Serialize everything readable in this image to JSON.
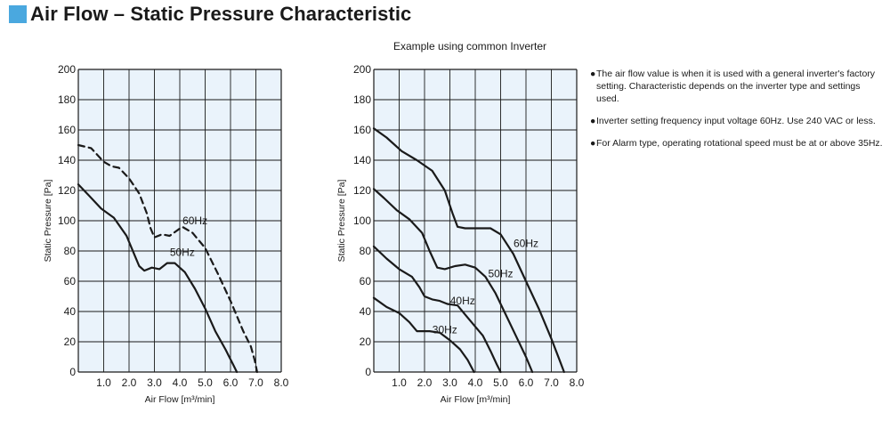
{
  "title": "Air Flow – Static Pressure Characteristic",
  "colors": {
    "accent": "#4aa8df",
    "plot_background": "#eaf3fb",
    "grid": "#1a1a1a",
    "curve": "#1a1a1a"
  },
  "notes": [
    "The air flow value is when it is used with a general inverter's factory setting.  Characteristic depends on the inverter type and settings used.",
    "Inverter setting frequency input voltage 60Hz. Use 240 VAC or less.",
    "For Alarm type, operating rotational speed must be at or above 35Hz."
  ],
  "chart_data": [
    {
      "type": "line",
      "subtitle": "",
      "xlabel": "Air Flow [m³/min]",
      "ylabel": "Static Pressure [Pa]",
      "xlim": [
        0,
        8.0
      ],
      "ylim": [
        0,
        200
      ],
      "x_ticks": [
        "1.0",
        "2.0",
        "3.0",
        "4.0",
        "5.0",
        "6.0",
        "7.0",
        "8.0"
      ],
      "y_ticks": [
        "0",
        "20",
        "40",
        "60",
        "80",
        "100",
        "120",
        "140",
        "160",
        "180",
        "200"
      ],
      "grid": true,
      "series": [
        {
          "name": "60Hz",
          "dashed": true,
          "points": [
            [
              0,
              150
            ],
            [
              0.5,
              148
            ],
            [
              1.0,
              139
            ],
            [
              1.3,
              136
            ],
            [
              1.6,
              135
            ],
            [
              2.0,
              128
            ],
            [
              2.4,
              118
            ],
            [
              2.7,
              105
            ],
            [
              2.85,
              95
            ],
            [
              3.0,
              89
            ],
            [
              3.3,
              91
            ],
            [
              3.6,
              90
            ],
            [
              3.85,
              93
            ],
            [
              4.1,
              96
            ],
            [
              4.5,
              92
            ],
            [
              5.0,
              82
            ],
            [
              5.5,
              65
            ],
            [
              6.0,
              47
            ],
            [
              6.5,
              27
            ],
            [
              6.8,
              17
            ],
            [
              6.95,
              8
            ],
            [
              7.05,
              0
            ]
          ],
          "label_at": [
            4.6,
            100
          ]
        },
        {
          "name": "50Hz",
          "dashed": false,
          "points": [
            [
              0,
              124
            ],
            [
              0.4,
              117
            ],
            [
              0.9,
              108
            ],
            [
              1.4,
              102
            ],
            [
              1.9,
              90
            ],
            [
              2.2,
              78
            ],
            [
              2.4,
              70
            ],
            [
              2.6,
              67
            ],
            [
              2.9,
              69
            ],
            [
              3.2,
              68
            ],
            [
              3.5,
              72
            ],
            [
              3.8,
              72
            ],
            [
              4.2,
              66
            ],
            [
              4.6,
              55
            ],
            [
              5.0,
              42
            ],
            [
              5.4,
              27
            ],
            [
              5.8,
              15
            ],
            [
              6.1,
              5
            ],
            [
              6.25,
              0
            ]
          ],
          "label_at": [
            4.1,
            79
          ]
        }
      ]
    },
    {
      "type": "line",
      "subtitle": "Example using common Inverter",
      "xlabel": "Air Flow [m³/min]",
      "ylabel": "Static Pressure [Pa]",
      "xlim": [
        0,
        8.0
      ],
      "ylim": [
        0,
        200
      ],
      "x_ticks": [
        "1.0",
        "2.0",
        "3.0",
        "4.0",
        "5.0",
        "6.0",
        "7.0",
        "8.0"
      ],
      "y_ticks": [
        "0",
        "20",
        "40",
        "60",
        "80",
        "100",
        "120",
        "140",
        "160",
        "180",
        "200"
      ],
      "grid": true,
      "series": [
        {
          "name": "60Hz",
          "dashed": false,
          "points": [
            [
              0,
              161
            ],
            [
              0.5,
              155
            ],
            [
              1.1,
              146
            ],
            [
              1.7,
              140
            ],
            [
              2.3,
              133
            ],
            [
              2.8,
              120
            ],
            [
              3.1,
              105
            ],
            [
              3.3,
              96
            ],
            [
              3.6,
              95
            ],
            [
              4.1,
              95
            ],
            [
              4.6,
              95
            ],
            [
              5.0,
              91
            ],
            [
              5.5,
              78
            ],
            [
              6.0,
              60
            ],
            [
              6.5,
              42
            ],
            [
              7.0,
              22
            ],
            [
              7.3,
              9
            ],
            [
              7.5,
              0
            ]
          ],
          "label_at": [
            6.0,
            85
          ]
        },
        {
          "name": "50Hz",
          "dashed": false,
          "points": [
            [
              0,
              121
            ],
            [
              0.4,
              115
            ],
            [
              0.9,
              107
            ],
            [
              1.4,
              101
            ],
            [
              1.9,
              92
            ],
            [
              2.2,
              80
            ],
            [
              2.5,
              69
            ],
            [
              2.8,
              68
            ],
            [
              3.2,
              70
            ],
            [
              3.6,
              71
            ],
            [
              4.0,
              69
            ],
            [
              4.4,
              63
            ],
            [
              4.8,
              52
            ],
            [
              5.2,
              38
            ],
            [
              5.6,
              24
            ],
            [
              6.0,
              10
            ],
            [
              6.25,
              0
            ]
          ],
          "label_at": [
            5.0,
            65
          ]
        },
        {
          "name": "40Hz",
          "dashed": false,
          "points": [
            [
              0,
              83
            ],
            [
              0.5,
              75
            ],
            [
              1.0,
              68
            ],
            [
              1.5,
              63
            ],
            [
              1.8,
              56
            ],
            [
              2.0,
              50
            ],
            [
              2.3,
              48
            ],
            [
              2.6,
              47
            ],
            [
              2.9,
              45
            ],
            [
              3.3,
              44
            ],
            [
              3.6,
              38
            ],
            [
              3.9,
              32
            ],
            [
              4.3,
              24
            ],
            [
              4.6,
              14
            ],
            [
              4.85,
              5
            ],
            [
              5.0,
              0
            ]
          ],
          "label_at": [
            3.5,
            47
          ]
        },
        {
          "name": "30Hz",
          "dashed": false,
          "points": [
            [
              0,
              49
            ],
            [
              0.5,
              43
            ],
            [
              1.0,
              39
            ],
            [
              1.4,
              33
            ],
            [
              1.7,
              27
            ],
            [
              2.2,
              27
            ],
            [
              2.6,
              26
            ],
            [
              3.0,
              21
            ],
            [
              3.4,
              15
            ],
            [
              3.7,
              8
            ],
            [
              3.95,
              0
            ]
          ],
          "label_at": [
            2.8,
            28
          ]
        }
      ]
    }
  ]
}
